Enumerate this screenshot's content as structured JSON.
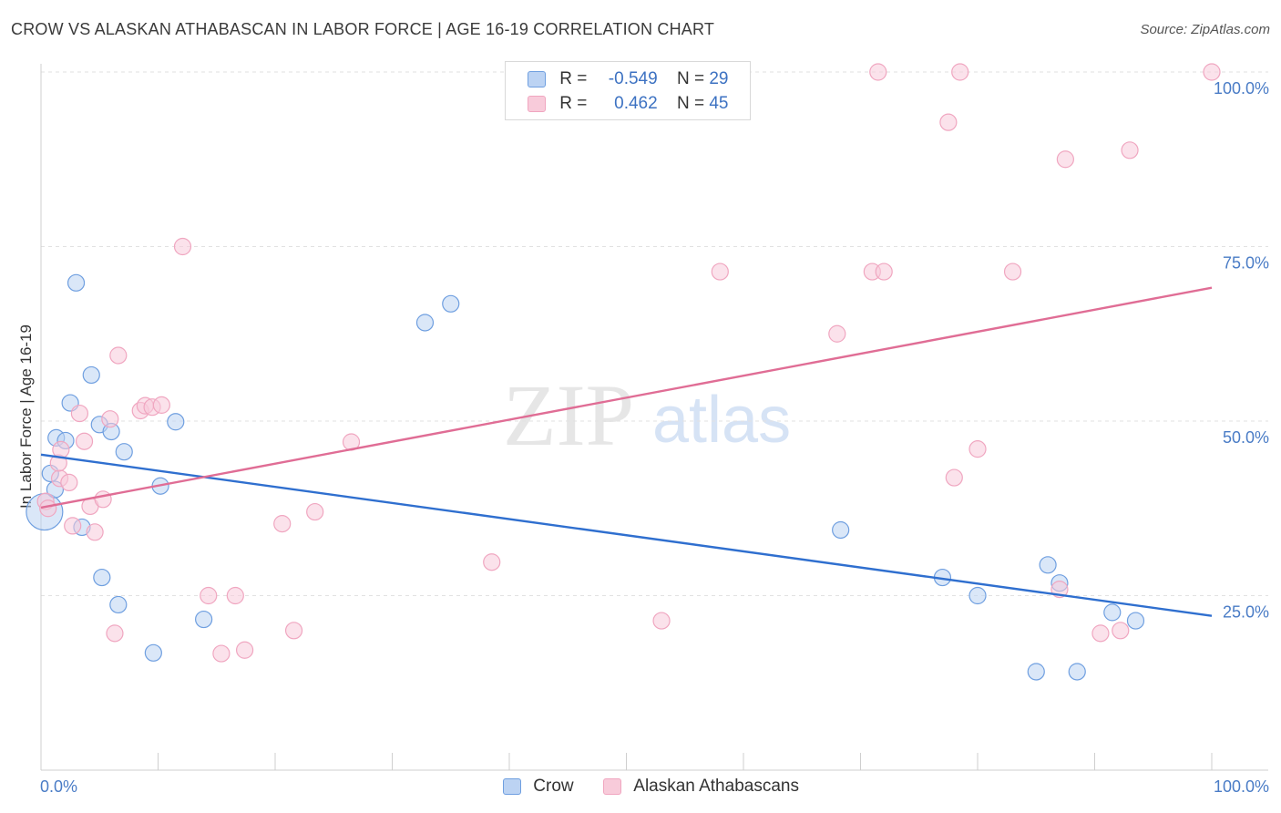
{
  "chart_data": {
    "type": "scatter",
    "title": "CROW VS ALASKAN ATHABASCAN IN LABOR FORCE | AGE 16-19 CORRELATION CHART",
    "source": "Source: ZipAtlas.com",
    "watermark": {
      "zip": "ZIP",
      "atlas": "atlas"
    },
    "xlabel": "",
    "ylabel": "In Labor Force | Age 16-19",
    "xlim": [
      0,
      100
    ],
    "ylim": [
      0,
      103
    ],
    "x_tick_labels": {
      "left": "0.0%",
      "right": "100.0%"
    },
    "y_ticks": [
      {
        "value": 25,
        "label": "25.0%"
      },
      {
        "value": 50,
        "label": "50.0%"
      },
      {
        "value": 75,
        "label": "75.0%"
      },
      {
        "value": 100,
        "label": "100.0%"
      }
    ],
    "legend": [
      {
        "r_label": "R =",
        "r_value": "-0.549",
        "n_label": "N =",
        "n_value": "29"
      },
      {
        "r_label": "R =",
        "r_value": " 0.462",
        "n_label": "N =",
        "n_value": "45"
      }
    ],
    "series": [
      {
        "name": "Crow",
        "color": "#6f9fe0",
        "fill": "#bcd3f3",
        "line_color": "#2f6fcf",
        "trend": {
          "x0": 0,
          "y0": 45.2,
          "x1": 100,
          "y1": 22.1
        },
        "points": [
          [
            0.3,
            37,
            20
          ],
          [
            0.8,
            42.5,
            9
          ],
          [
            1.2,
            40.2,
            9
          ],
          [
            1.3,
            47.6,
            9
          ],
          [
            2.1,
            47.2,
            9
          ],
          [
            2.5,
            52.6,
            9
          ],
          [
            3.0,
            69.8,
            9
          ],
          [
            3.5,
            34.8,
            9
          ],
          [
            4.3,
            56.6,
            9
          ],
          [
            5.0,
            49.5,
            9
          ],
          [
            5.2,
            27.6,
            9
          ],
          [
            6.0,
            48.5,
            9
          ],
          [
            6.6,
            23.7,
            9
          ],
          [
            7.1,
            45.6,
            9
          ],
          [
            9.6,
            16.8,
            9
          ],
          [
            10.2,
            40.7,
            9
          ],
          [
            11.5,
            49.9,
            9
          ],
          [
            13.9,
            21.6,
            9
          ],
          [
            32.8,
            64.1,
            9
          ],
          [
            35.0,
            66.8,
            9
          ],
          [
            68.3,
            34.4,
            9
          ],
          [
            77.0,
            27.6,
            9
          ],
          [
            80.0,
            25.0,
            9
          ],
          [
            85.0,
            14.1,
            9
          ],
          [
            86.0,
            29.4,
            9
          ],
          [
            87.0,
            26.8,
            9
          ],
          [
            88.5,
            14.1,
            9
          ],
          [
            91.5,
            22.6,
            9
          ],
          [
            93.5,
            21.4,
            9
          ]
        ]
      },
      {
        "name": "Alaskan Athabascans",
        "color": "#f0a6c0",
        "fill": "#f8cbda",
        "line_color": "#e06d95",
        "trend": {
          "x0": 0,
          "y0": 37.6,
          "x1": 100,
          "y1": 69.1
        },
        "points": [
          [
            0.4,
            38.5,
            9
          ],
          [
            0.6,
            37.5,
            9
          ],
          [
            1.6,
            41.8,
            9
          ],
          [
            1.5,
            44.0,
            9
          ],
          [
            1.7,
            45.9,
            9
          ],
          [
            2.4,
            41.2,
            9
          ],
          [
            2.7,
            35.0,
            9
          ],
          [
            3.3,
            51.1,
            9
          ],
          [
            3.7,
            47.1,
            9
          ],
          [
            4.2,
            37.8,
            9
          ],
          [
            4.6,
            34.1,
            9
          ],
          [
            5.3,
            38.8,
            9
          ],
          [
            5.9,
            50.3,
            9
          ],
          [
            6.3,
            19.6,
            9
          ],
          [
            6.6,
            59.4,
            9
          ],
          [
            8.5,
            51.5,
            9
          ],
          [
            8.9,
            52.2,
            9
          ],
          [
            9.5,
            52.0,
            9
          ],
          [
            10.3,
            52.3,
            9
          ],
          [
            12.1,
            75.0,
            9
          ],
          [
            14.3,
            25.0,
            9
          ],
          [
            15.4,
            16.7,
            9
          ],
          [
            16.6,
            25.0,
            9
          ],
          [
            17.4,
            17.2,
            9
          ],
          [
            20.6,
            35.3,
            9
          ],
          [
            21.6,
            20.0,
            9
          ],
          [
            23.4,
            37.0,
            9
          ],
          [
            26.5,
            47.0,
            9
          ],
          [
            38.5,
            29.8,
            9
          ],
          [
            53.0,
            21.4,
            9
          ],
          [
            58.0,
            71.4,
            9
          ],
          [
            68.0,
            62.5,
            9
          ],
          [
            71.0,
            71.4,
            9
          ],
          [
            72.0,
            71.4,
            9
          ],
          [
            71.5,
            100.0,
            9
          ],
          [
            77.5,
            92.8,
            9
          ],
          [
            78.0,
            41.9,
            9
          ],
          [
            80.0,
            46.0,
            9
          ],
          [
            78.5,
            100.0,
            9
          ],
          [
            83.0,
            71.4,
            9
          ],
          [
            87.5,
            87.5,
            9
          ],
          [
            87.0,
            25.9,
            9
          ],
          [
            90.5,
            19.6,
            9
          ],
          [
            92.2,
            20.0,
            9
          ],
          [
            93.0,
            88.8,
            9
          ]
        ]
      }
    ],
    "extra_points": [
      {
        "series": "Alaskan Athabascans",
        "x": 100,
        "y": 100
      }
    ]
  }
}
